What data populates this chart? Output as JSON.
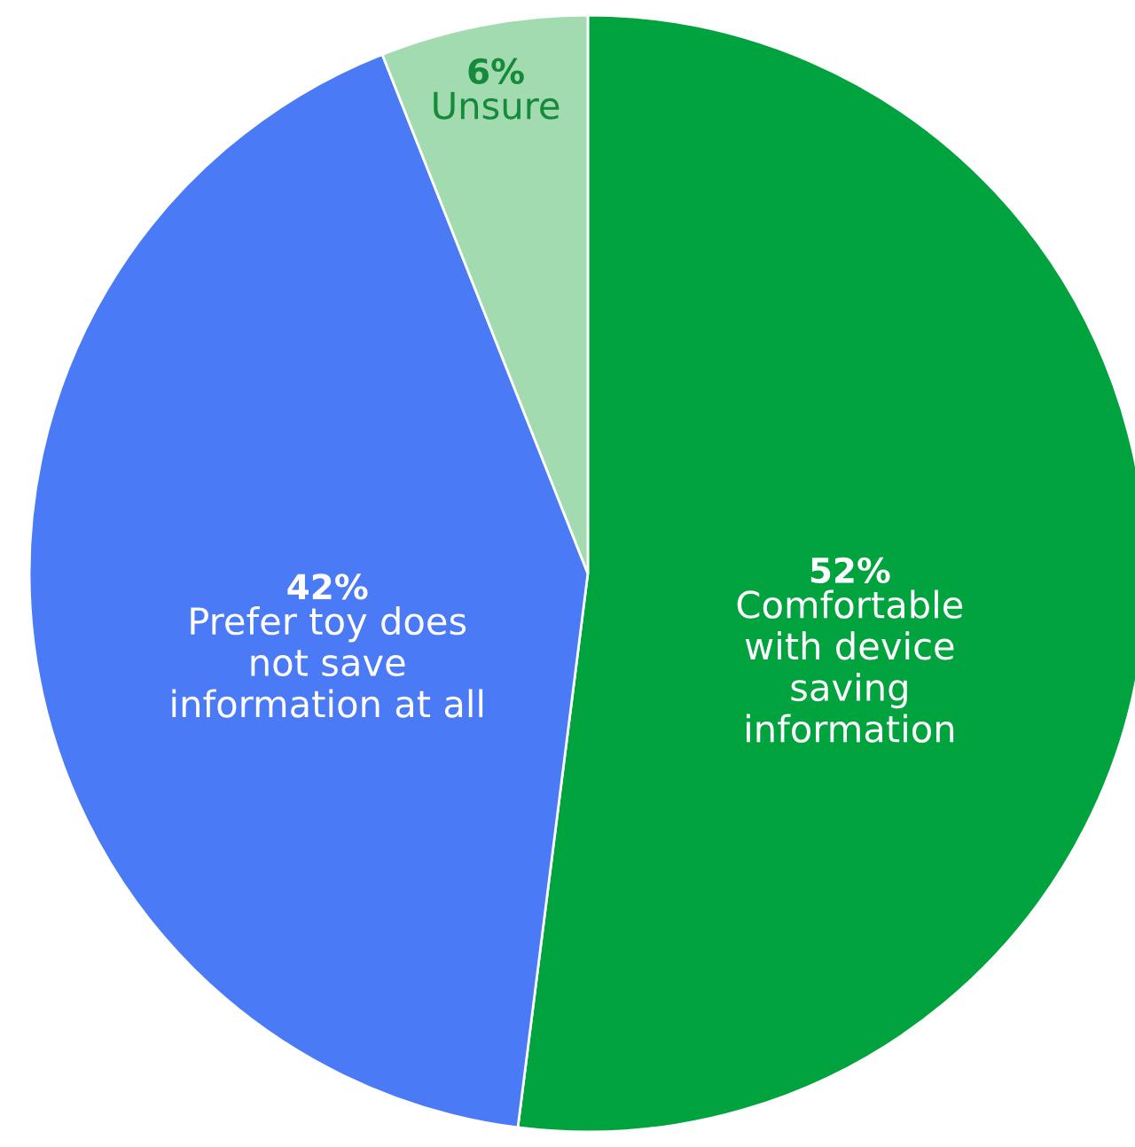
{
  "chart_data": {
    "type": "pie",
    "categories": [
      "Comfortable\nwith device\nsaving\ninformation",
      "Prefer toy does\nnot save\ninformation at all",
      "Unsure"
    ],
    "values": [
      52,
      42,
      6
    ],
    "colors": [
      "#00a33d",
      "#4a7af5",
      "#a2dbb0"
    ],
    "value_labels": [
      "52%",
      "42%",
      "6%"
    ]
  }
}
